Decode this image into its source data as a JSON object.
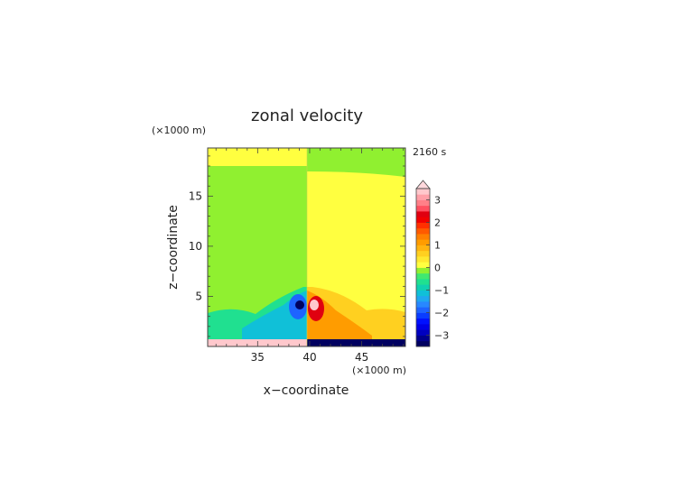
{
  "chart_data": {
    "type": "heatmap",
    "title": "zonal velocity",
    "xlabel": "x−coordinate",
    "ylabel": "z−coordinate",
    "x_unit": "(×1000 m)",
    "y_unit": "(×1000 m)",
    "time_label": "2160 s",
    "xlim": [
      30.2,
      49.2
    ],
    "ylim": [
      0,
      19.8
    ],
    "x_ticks": [
      35,
      40,
      45
    ],
    "y_ticks": [
      5,
      10,
      15
    ],
    "colorbar": {
      "levels": [
        -3.5,
        -3.25,
        -3,
        -2.75,
        -2.5,
        -2.25,
        -2,
        -1.75,
        -1.5,
        -1.25,
        -1,
        -0.75,
        -0.5,
        -0.25,
        0,
        0.25,
        0.5,
        0.75,
        1,
        1.25,
        1.5,
        1.75,
        2,
        2.25,
        2.5,
        2.75,
        3,
        3.25,
        3.5
      ],
      "colors": [
        "#000060",
        "#00008c",
        "#0000c0",
        "#0000e6",
        "#0010ff",
        "#0a3cff",
        "#1e64ff",
        "#2888ff",
        "#20a8f0",
        "#10c0d8",
        "#10d0b0",
        "#20e090",
        "#40e870",
        "#90f030",
        "#ffff40",
        "#ffe830",
        "#ffd020",
        "#ffb410",
        "#ff9c00",
        "#ff8000",
        "#ff5a00",
        "#ff3000",
        "#f00000",
        "#e00010",
        "#ff5060",
        "#ff8088",
        "#ffa0a8",
        "#ffc8cc"
      ],
      "tick_values": [
        -3,
        -2,
        -1,
        0,
        1,
        2,
        3
      ],
      "tick_labels": [
        "−3",
        "−2",
        "−1",
        "0",
        "1",
        "2",
        "3"
      ],
      "extend": "max"
    },
    "fields": [
      {
        "name": "left-sector",
        "value": -0.1
      },
      {
        "name": "right-sector",
        "value": 0.1
      },
      {
        "name": "top-left-band",
        "value": 0.1
      },
      {
        "name": "top-right-band",
        "value": -0.1
      },
      {
        "name": "lower-left-lobe",
        "value": -0.6
      },
      {
        "name": "lower-right-lobe",
        "value": 0.5
      },
      {
        "name": "left-mid-band",
        "value": -1.1
      },
      {
        "name": "right-mid-band",
        "value": 1.2
      },
      {
        "name": "left-jet",
        "value": -2.0
      },
      {
        "name": "right-jet",
        "value": 2.4
      },
      {
        "name": "left-core",
        "value": -3.3
      },
      {
        "name": "right-core",
        "value": 3.3
      },
      {
        "name": "surface-negative",
        "value": -3.3
      },
      {
        "name": "surface-positive",
        "value": 3.3
      }
    ]
  }
}
